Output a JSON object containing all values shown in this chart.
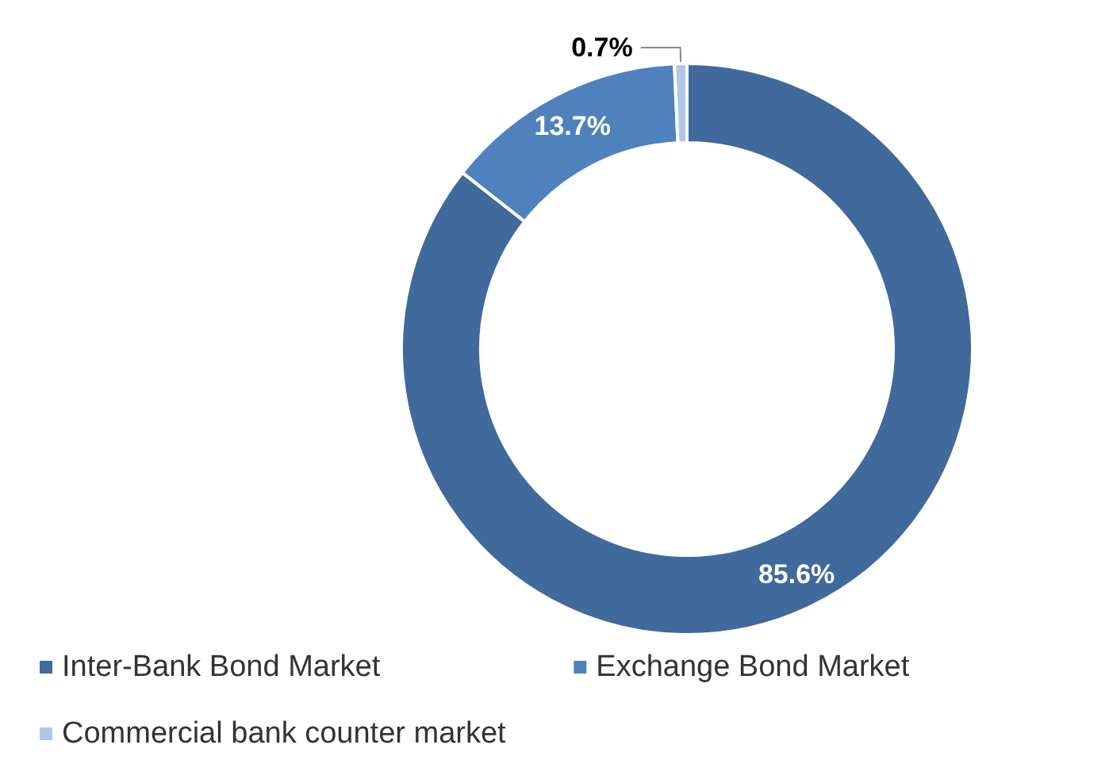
{
  "chart_data": {
    "type": "donut",
    "categories": [
      "Inter-Bank Bond Market",
      "Exchange Bond Market",
      "Commercial bank counter market"
    ],
    "values": [
      85.6,
      13.7,
      0.7
    ],
    "colors": [
      "#40699c",
      "#4f81bd",
      "#b4c6e7"
    ],
    "value_labels": [
      "85.6%",
      "13.7%",
      "0.7%"
    ],
    "legend": "bottom left"
  }
}
